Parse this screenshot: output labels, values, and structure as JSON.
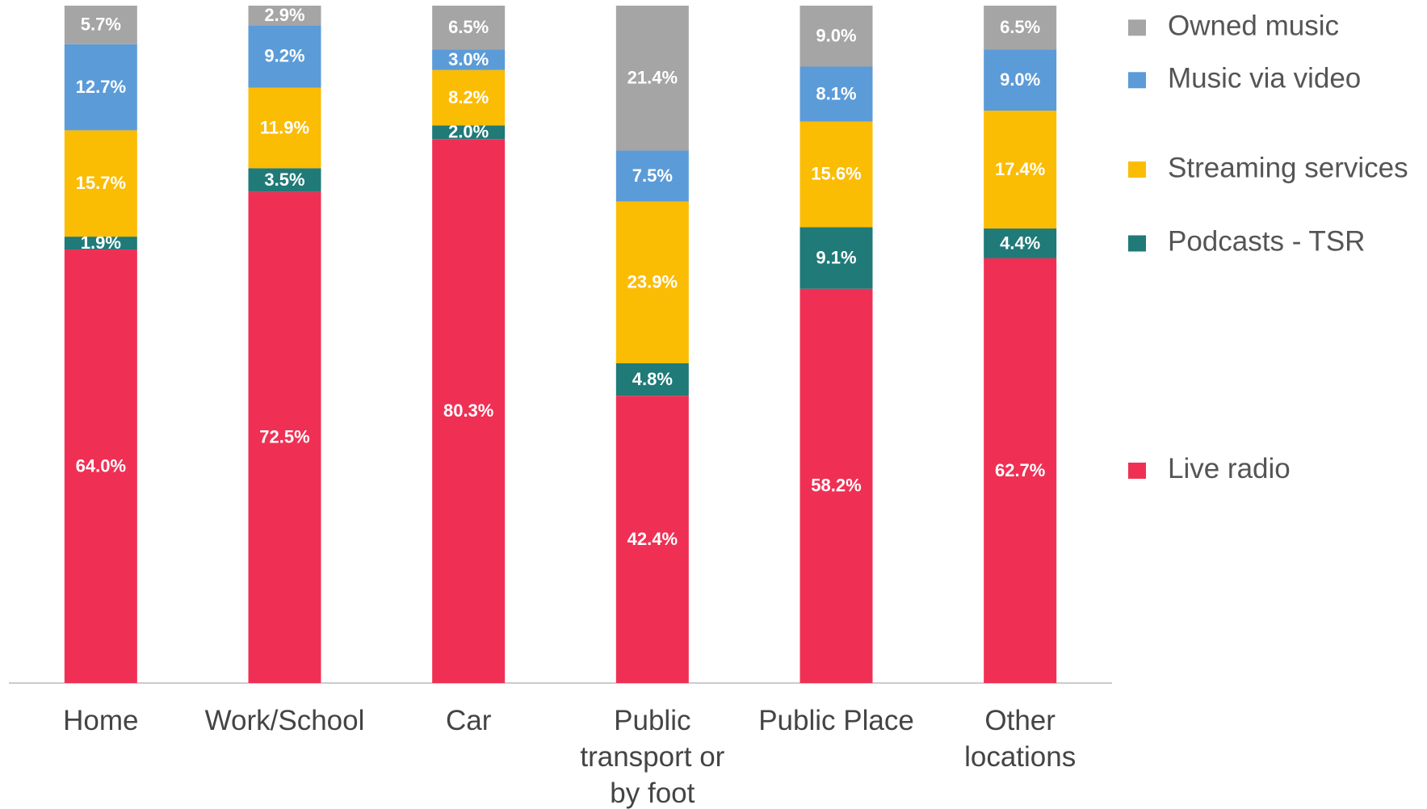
{
  "chart_data": {
    "type": "stacked_bar",
    "categories": [
      "Home",
      "Work/School",
      "Car",
      "Public transport or by foot",
      "Public Place",
      "Other locations"
    ],
    "ylim": [
      0,
      100
    ],
    "legend": "right",
    "series": [
      {
        "name": "Live radio",
        "color": "#ef3054",
        "values": [
          64.0,
          72.5,
          80.3,
          42.4,
          58.2,
          62.7
        ],
        "value_labels": [
          "64.0%",
          "72.5%",
          "80.3%",
          "42.4%",
          "58.2%",
          "62.7%"
        ]
      },
      {
        "name": "Podcasts - TSR",
        "color": "#1f7a78",
        "values": [
          1.9,
          3.5,
          2.0,
          4.8,
          9.1,
          4.4
        ],
        "value_labels": [
          "1.9%",
          "3.5%",
          "2.0%",
          "4.8%",
          "9.1%",
          "4.4%"
        ]
      },
      {
        "name": "Streaming services",
        "color": "#fbbc04",
        "values": [
          15.7,
          11.9,
          8.2,
          23.9,
          15.6,
          17.4
        ],
        "value_labels": [
          "15.7%",
          "11.9%",
          "8.2%",
          "23.9%",
          "15.6%",
          "17.4%"
        ]
      },
      {
        "name": "Music via video",
        "color": "#5b9bd8",
        "values": [
          12.7,
          9.2,
          3.0,
          7.5,
          8.1,
          9.0
        ],
        "value_labels": [
          "12.7%",
          "9.2%",
          "3.0%",
          "7.5%",
          "8.1%",
          "9.0%"
        ]
      },
      {
        "name": "Owned music",
        "color": "#a5a5a5",
        "values": [
          5.7,
          2.9,
          6.5,
          21.4,
          9.0,
          6.5
        ],
        "value_labels": [
          "5.7%",
          "2.9%",
          "6.5%",
          "21.4%",
          "9.0%",
          "6.5%"
        ]
      }
    ]
  }
}
